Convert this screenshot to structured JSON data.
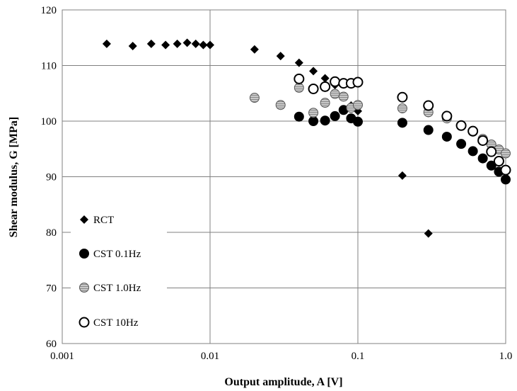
{
  "chart_data": {
    "type": "scatter",
    "title": "",
    "xlabel": "Output amplitude, A [V]",
    "ylabel": "Shear modulus, G [MPa]",
    "x_scale": "log",
    "xlim": [
      0.001,
      1.0
    ],
    "ylim": [
      60,
      120
    ],
    "x_ticks": [
      "0.001",
      "0.01",
      "0.1",
      "1.0"
    ],
    "y_ticks": [
      "60",
      "70",
      "80",
      "90",
      "100",
      "110",
      "120"
    ],
    "grid": true,
    "legend_position": "lower-left",
    "series": [
      {
        "name": "RCT",
        "marker": "diamond",
        "color": "#000000",
        "x": [
          0.002,
          0.003,
          0.004,
          0.005,
          0.006,
          0.007,
          0.008,
          0.009,
          0.01,
          0.02,
          0.03,
          0.04,
          0.05,
          0.06,
          0.07,
          0.08,
          0.09,
          0.1,
          0.2,
          0.3
        ],
        "y": [
          113.9,
          113.5,
          113.9,
          113.7,
          113.9,
          114.1,
          113.9,
          113.7,
          113.7,
          112.9,
          111.7,
          110.5,
          109.0,
          107.7,
          106.5,
          104.3,
          102.8,
          101.8,
          90.2,
          79.8
        ]
      },
      {
        "name": "CST 0.1Hz",
        "marker": "circle-filled",
        "color": "#000000",
        "x": [
          0.04,
          0.05,
          0.06,
          0.07,
          0.08,
          0.09,
          0.1,
          0.2,
          0.3,
          0.4,
          0.5,
          0.6,
          0.7,
          0.8,
          0.9,
          1.0
        ],
        "y": [
          100.8,
          100.0,
          100.1,
          100.9,
          102.0,
          100.5,
          99.9,
          99.7,
          98.4,
          97.2,
          95.9,
          94.6,
          93.3,
          92.0,
          90.9,
          89.5
        ]
      },
      {
        "name": "CST 1.0Hz",
        "marker": "circle-gray",
        "color": "#b4b4b4",
        "x": [
          0.02,
          0.03,
          0.04,
          0.05,
          0.06,
          0.07,
          0.08,
          0.09,
          0.1,
          0.2,
          0.3,
          0.4,
          0.5,
          0.6,
          0.7,
          0.8,
          0.9,
          1.0
        ],
        "y": [
          104.2,
          102.9,
          106.0,
          101.5,
          103.3,
          104.9,
          104.4,
          102.4,
          102.9,
          102.3,
          101.6,
          100.5,
          99.2,
          98.1,
          96.8,
          95.8,
          94.9,
          94.2
        ]
      },
      {
        "name": "CST 10Hz",
        "marker": "circle-open",
        "color": "#ffffff",
        "x": [
          0.04,
          0.05,
          0.06,
          0.07,
          0.08,
          0.09,
          0.1,
          0.2,
          0.3,
          0.4,
          0.5,
          0.6,
          0.7,
          0.8,
          0.9,
          1.0
        ],
        "y": [
          107.6,
          105.8,
          106.2,
          107.1,
          106.8,
          106.8,
          107.0,
          104.3,
          102.8,
          100.9,
          99.2,
          98.2,
          96.5,
          94.5,
          92.8,
          91.2
        ]
      }
    ]
  }
}
